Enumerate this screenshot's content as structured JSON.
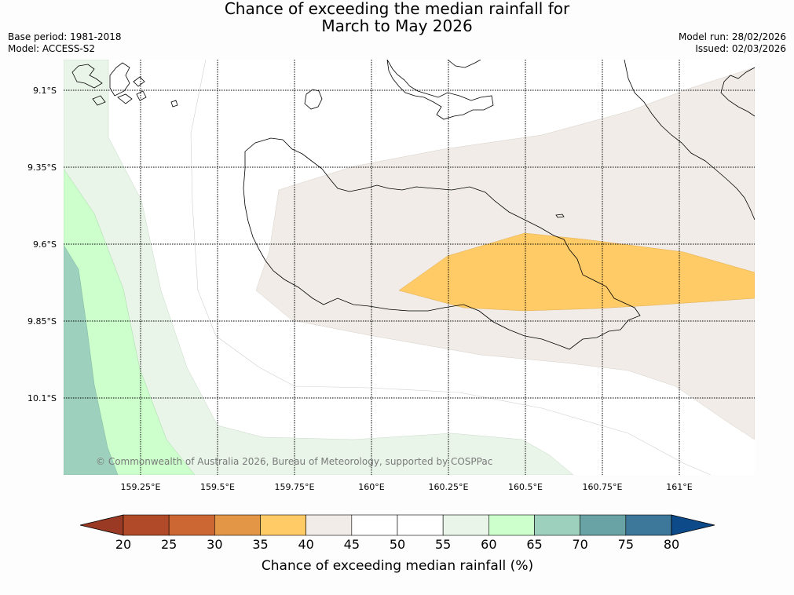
{
  "title": {
    "line1": "Chance of exceeding the median rainfall for",
    "line2": "March to May 2026"
  },
  "meta": {
    "base_period": "Base period: 1981-2018",
    "model": "Model: ACCESS-S2",
    "model_run": "Model run: 28/02/2026",
    "issued": "Issued: 02/03/2026"
  },
  "map": {
    "lat_labels": [
      "9.1°S",
      "9.35°S",
      "9.6°S",
      "9.85°S",
      "10.1°S"
    ],
    "lon_labels": [
      "159.25°E",
      "159.5°E",
      "159.75°E",
      "160°E",
      "160.25°E",
      "160.5°E",
      "160.75°E",
      "161°E"
    ],
    "copyright": "© Commonwealth of Australia 2026, Bureau of Meteorology, supported by COSPPac",
    "colors": {
      "band_40_45": "#f1ece7",
      "band_35_40": "#ffcb66",
      "band_55_60": "#e9f5e9",
      "band_60_65": "#ccffcc",
      "band_65_70": "#9ed1bd",
      "coast": "#000000"
    }
  },
  "colorbar": {
    "title": "Chance of exceeding median rainfall (%)",
    "ticks": [
      "20",
      "25",
      "30",
      "35",
      "40",
      "45",
      "50",
      "55",
      "60",
      "65",
      "70",
      "75",
      "80"
    ],
    "under_color": "#9a3a24",
    "over_color": "#0d4a8a",
    "colors": [
      "#b14a28",
      "#cc6633",
      "#e29646",
      "#ffcb66",
      "#f1ece7",
      "#ffffff",
      "#ffffff",
      "#e9f5e9",
      "#ccffcc",
      "#9ed1bd",
      "#6aa3a6",
      "#3d7799"
    ]
  }
}
